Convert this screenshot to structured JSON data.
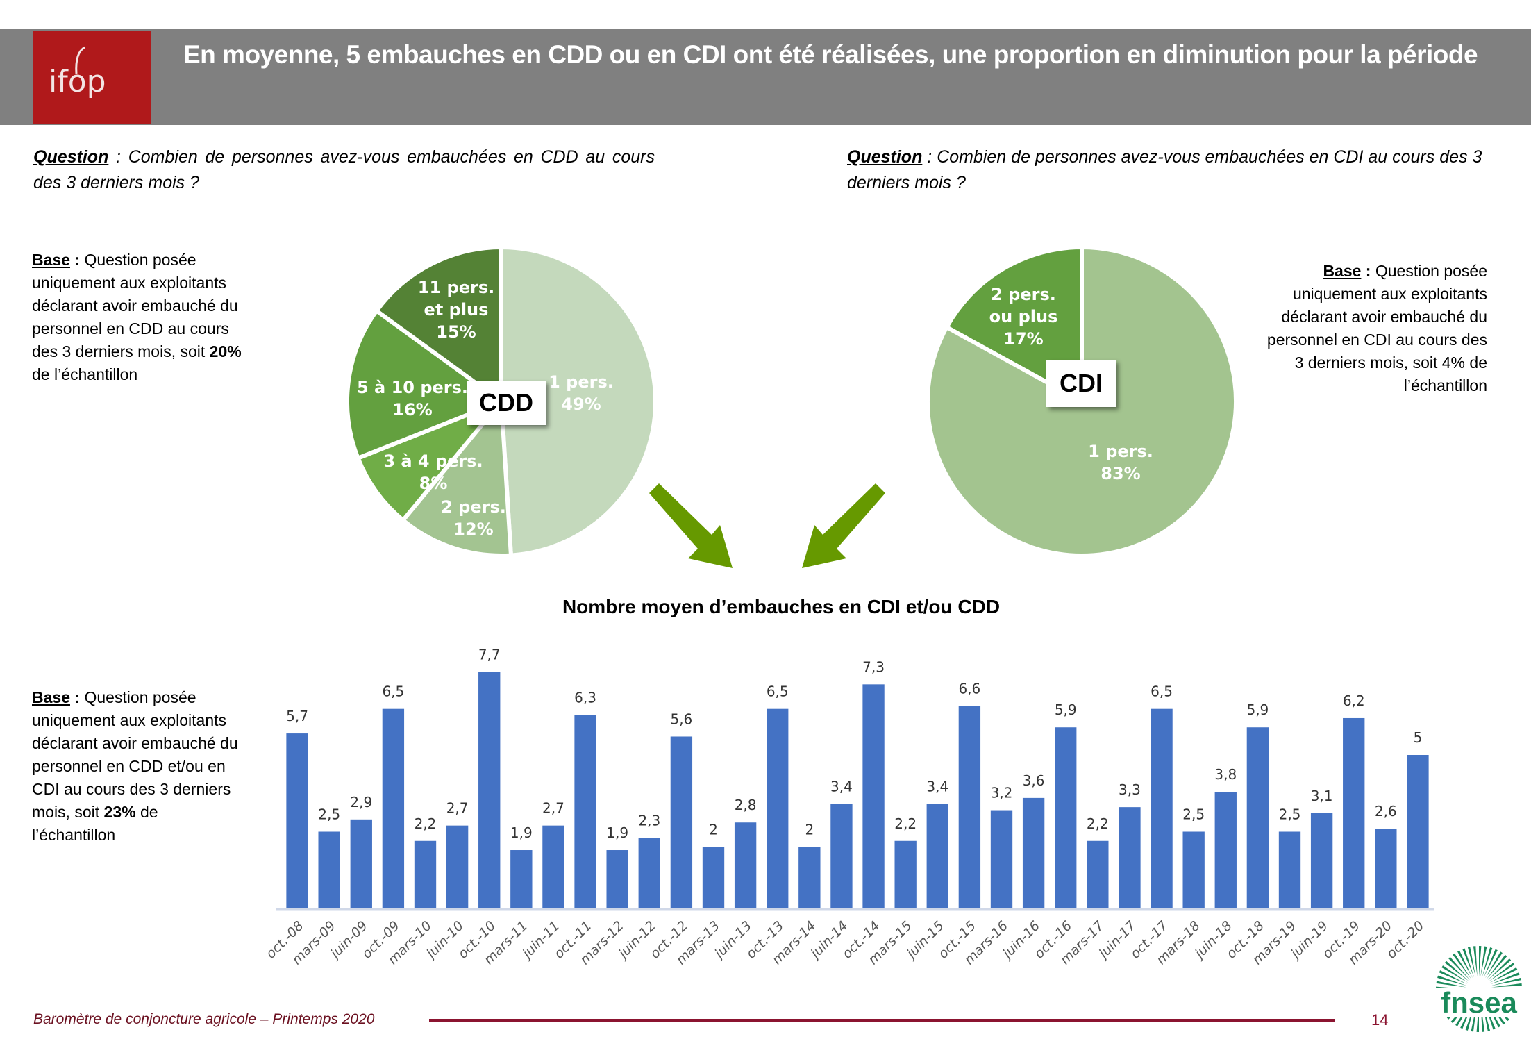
{
  "header": {
    "logo_text": "ifop",
    "title": "En moyenne, 5 embauches en CDD ou en CDI ont été réalisées, une proportion en diminution pour la période"
  },
  "questions": {
    "cdd": {
      "label": "Question",
      "sep": " : ",
      "text": "Combien de personnes avez-vous embauchées en CDD au cours des 3 derniers mois ?"
    },
    "cdi": {
      "label": "Question",
      "sep": " : ",
      "text": "Combien de personnes avez-vous embauchées en CDI au cours des 3 derniers mois ?"
    }
  },
  "bases": {
    "cdd": {
      "label": "Base",
      "sep": " : ",
      "text_before": "Question posée uniquement aux exploitants déclarant avoir embauché du personnel en CDD au cours des 3 derniers mois, soit ",
      "bold": "20%",
      "text_after": " de l’échantillon"
    },
    "cdi": {
      "label": "Base",
      "sep": " : ",
      "text_before": "Question posée uniquement aux exploitants déclarant avoir embauché du personnel en CDI au cours des 3 derniers mois, soit ",
      "bold": "4%",
      "text_after": " de l’échantillon"
    },
    "bars": {
      "label": "Base",
      "sep": " : ",
      "text_before": "Question posée uniquement aux exploitants déclarant avoir embauché du personnel en CDD et/ou en CDI au cours des 3 derniers mois, soit ",
      "bold": "23%",
      "text_after": " de l’échantillon"
    }
  },
  "colors": {
    "header_bg": "#808080",
    "ifop_red": "#b0191b",
    "bar_blue": "#4472c4",
    "arrow_green": "#669900",
    "footer_red": "#8b1430",
    "fnsea_green": "#1a8a5a"
  },
  "chart_data": [
    {
      "type": "pie",
      "title": "CDD",
      "start": "12 o'clock, clockwise",
      "slices": [
        {
          "label": "1 pers.",
          "value": 49,
          "display": "49%",
          "color": "#c4d9bc"
        },
        {
          "label": "2 pers.",
          "value": 12,
          "display": "12%",
          "color": "#a3c491"
        },
        {
          "label": "3 à 4 pers.",
          "value": 8,
          "display": "8%",
          "color": "#70ad47"
        },
        {
          "label": "5 à 10 pers.",
          "value": 16,
          "display": "16%",
          "color": "#63a03f"
        },
        {
          "label": "11 pers. et plus",
          "value": 15,
          "display": "15%",
          "color": "#548235"
        }
      ]
    },
    {
      "type": "pie",
      "title": "CDI",
      "start": "12 o'clock, clockwise",
      "slices": [
        {
          "label": "1 pers.",
          "value": 83,
          "display": "83%",
          "color": "#a3c48f"
        },
        {
          "label": "2 pers. ou plus",
          "value": 17,
          "display": "17%",
          "color": "#63a03f"
        }
      ]
    },
    {
      "type": "bar",
      "title": "Nombre moyen d’embauches en CDI et/ou CDD",
      "xlabel": "",
      "ylabel": "",
      "ylim": [
        0,
        8
      ],
      "grid": false,
      "categories": [
        "oct.-08",
        "mars-09",
        "juin-09",
        "oct.-09",
        "mars-10",
        "juin-10",
        "oct.-10",
        "mars-11",
        "juin-11",
        "oct.-11",
        "mars-12",
        "juin-12",
        "oct.-12",
        "mars-13",
        "juin-13",
        "oct.-13",
        "mars-14",
        "juin-14",
        "oct.-14",
        "mars-15",
        "juin-15",
        "oct.-15",
        "mars-16",
        "juin-16",
        "oct.-16",
        "mars-17",
        "juin-17",
        "oct.-17",
        "mars-18",
        "juin-18",
        "oct.-18",
        "mars-19",
        "juin-19",
        "oct.-19",
        "mars-20",
        "oct.-20"
      ],
      "values": [
        5.7,
        2.5,
        2.9,
        6.5,
        2.2,
        2.7,
        7.7,
        1.9,
        2.7,
        6.3,
        1.9,
        2.3,
        5.6,
        2,
        2.8,
        6.5,
        2,
        3.4,
        7.3,
        2.2,
        3.4,
        6.6,
        3.2,
        3.6,
        5.9,
        2.2,
        3.3,
        6.5,
        2.5,
        3.8,
        5.9,
        2.5,
        3.1,
        6.2,
        2.6,
        5
      ],
      "labels": [
        "5,7",
        "2,5",
        "2,9",
        "6,5",
        "2,2",
        "2,7",
        "7,7",
        "1,9",
        "2,7",
        "6,3",
        "1,9",
        "2,3",
        "5,6",
        "2",
        "2,8",
        "6,5",
        "2",
        "3,4",
        "7,3",
        "2,2",
        "3,4",
        "6,6",
        "3,2",
        "3,6",
        "5,9",
        "2,2",
        "3,3",
        "6,5",
        "2,5",
        "3,8",
        "5,9",
        "2,5",
        "3,1",
        "6,2",
        "2,6",
        "5"
      ]
    }
  ],
  "footer": {
    "text": "Baromètre de conjoncture agricole – Printemps 2020",
    "page": "14",
    "logo_text": "fnsea"
  }
}
